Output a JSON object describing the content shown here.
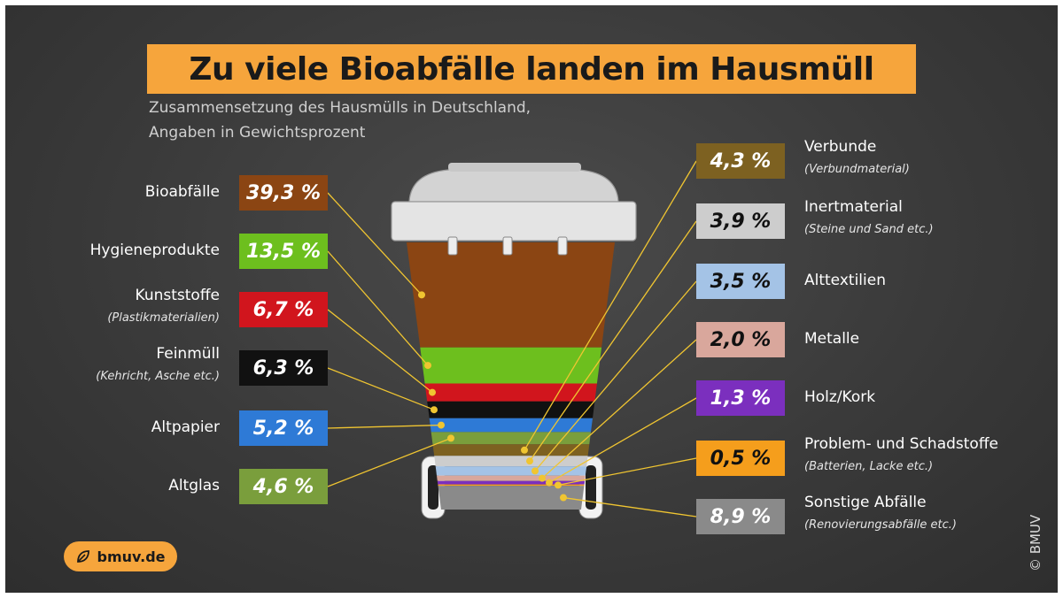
{
  "title": "Zu viele Bioabfälle landen im Hausmüll",
  "subtitle_line1": "Zusammensetzung des Hausmülls in Deutschland,",
  "subtitle_line2": "Angaben in Gewichtsprozent",
  "logo_label": "bmuv.de",
  "logo_icon": "leaf-icon",
  "copyright": "© BMUV",
  "colors": {
    "background": "#3a3a3a",
    "title_bg": "#f6a53c",
    "leader_line": "#f0c531"
  },
  "chart_data": {
    "type": "bar",
    "unit": "%",
    "series": [
      {
        "name": "Bioabfälle",
        "value": 39.3,
        "label": "39,3 %",
        "note": "",
        "color": "#8b4513",
        "text_color": "#ffffff"
      },
      {
        "name": "Hygieneprodukte",
        "value": 13.5,
        "label": "13,5 %",
        "note": "",
        "color": "#6dbf1e",
        "text_color": "#ffffff"
      },
      {
        "name": "Kunststoffe",
        "value": 6.7,
        "label": "6,7 %",
        "note": "(Plastikmaterialien)",
        "color": "#d1151d",
        "text_color": "#ffffff"
      },
      {
        "name": "Feinmüll",
        "value": 6.3,
        "label": "6,3 %",
        "note": "(Kehricht, Asche etc.)",
        "color": "#111111",
        "text_color": "#ffffff"
      },
      {
        "name": "Altpapier",
        "value": 5.2,
        "label": "5,2 %",
        "note": "",
        "color": "#2e7ad6",
        "text_color": "#ffffff"
      },
      {
        "name": "Altglas",
        "value": 4.6,
        "label": "4,6 %",
        "note": "",
        "color": "#7a9e3c",
        "text_color": "#ffffff"
      },
      {
        "name": "Verbunde",
        "value": 4.3,
        "label": "4,3 %",
        "note": "(Verbundmaterial)",
        "color": "#7d6121",
        "text_color": "#ffffff"
      },
      {
        "name": "Inertmaterial",
        "value": 3.9,
        "label": "3,9 %",
        "note": "(Steine und Sand etc.)",
        "color": "#cdcdcd",
        "text_color": "#111111"
      },
      {
        "name": "Alttextilien",
        "value": 3.5,
        "label": "3,5 %",
        "note": "",
        "color": "#a4c3e6",
        "text_color": "#111111"
      },
      {
        "name": "Metalle",
        "value": 2.0,
        "label": "2,0 %",
        "note": "",
        "color": "#d9a79c",
        "text_color": "#111111"
      },
      {
        "name": "Holz/Kork",
        "value": 1.3,
        "label": "1,3 %",
        "note": "",
        "color": "#7b2fbe",
        "text_color": "#ffffff"
      },
      {
        "name": "Problem- und Schadstoffe",
        "value": 0.5,
        "label": "0,5 %",
        "note": "(Batterien, Lacke etc.)",
        "color": "#f59e1c",
        "text_color": "#111111"
      },
      {
        "name": "Sonstige Abfälle",
        "value": 8.9,
        "label": "8,9 %",
        "note": "(Renovierungsabfälle etc.)",
        "color": "#8a8a8a",
        "text_color": "#ffffff"
      }
    ]
  }
}
